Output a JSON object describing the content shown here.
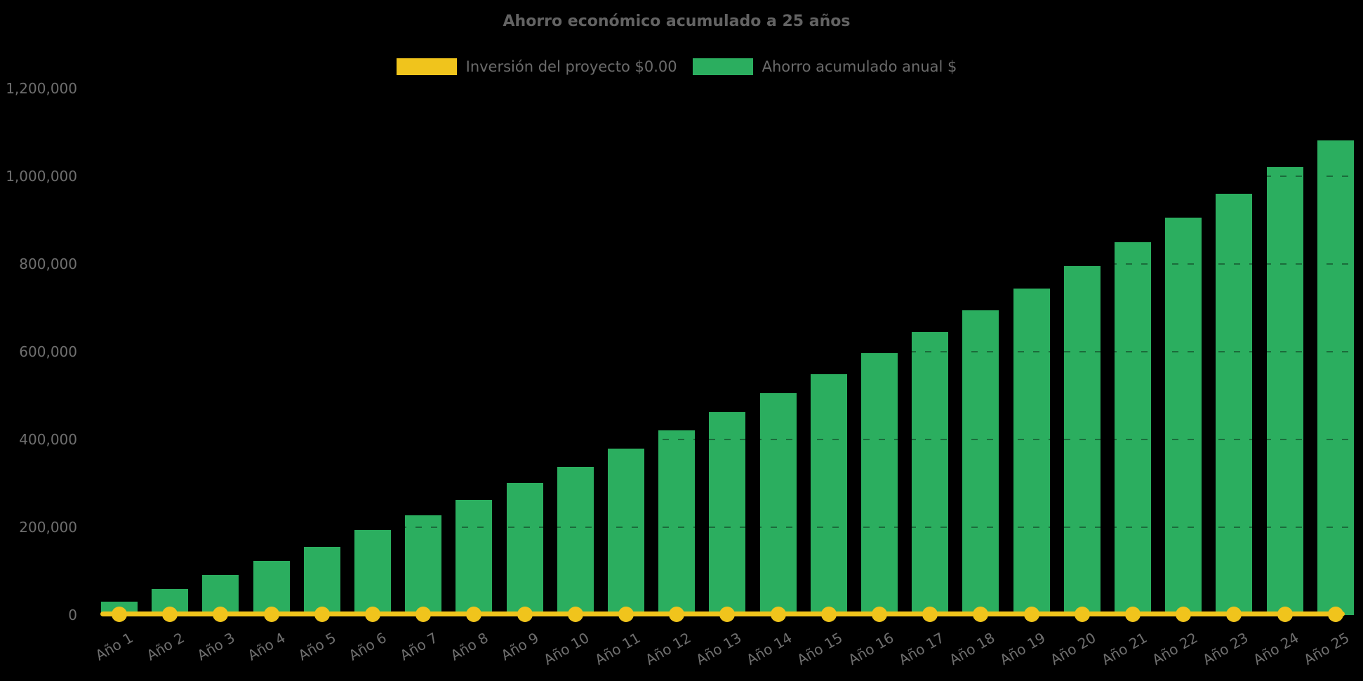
{
  "title": "Ahorro económico acumulado a 25 años",
  "legend": {
    "items": [
      {
        "label": "Inversión del proyecto $0.00",
        "color": "#f0c41c"
      },
      {
        "label": "Ahorro acumulado anual $",
        "color": "#2bae5f"
      }
    ]
  },
  "chart_data": {
    "type": "bar",
    "title": "Ahorro económico acumulado a 25 años",
    "categories": [
      "Año 1",
      "Año 2",
      "Año 3",
      "Año 4",
      "Año 5",
      "Año 6",
      "Año 7",
      "Año 8",
      "Año 9",
      "Año 10",
      "Año 11",
      "Año 12",
      "Año 13",
      "Año 14",
      "Año 15",
      "Año 16",
      "Año 17",
      "Año 18",
      "Año 19",
      "Año 20",
      "Año 21",
      "Año 22",
      "Año 23",
      "Año 24",
      "Año 25"
    ],
    "series": [
      {
        "name": "Inversión del proyecto $0.00",
        "type": "line",
        "marker": "circle",
        "color": "#f0c41c",
        "values": [
          0,
          0,
          0,
          0,
          0,
          0,
          0,
          0,
          0,
          0,
          0,
          0,
          0,
          0,
          0,
          0,
          0,
          0,
          0,
          0,
          0,
          0,
          0,
          0,
          0
        ]
      },
      {
        "name": "Ahorro acumulado anual $",
        "type": "bar",
        "color": "#2bae5f",
        "values": [
          30000,
          60000,
          92000,
          123000,
          156000,
          193000,
          227000,
          262000,
          301000,
          338000,
          379000,
          421000,
          462000,
          506000,
          549000,
          597000,
          645000,
          694000,
          744000,
          795000,
          850000,
          906000,
          960000,
          1021000,
          1082000
        ]
      }
    ],
    "xlabel": "",
    "ylabel": "",
    "ylim": [
      0,
      1200000
    ],
    "yticks": [
      0,
      200000,
      400000,
      600000,
      800000,
      1000000,
      1200000
    ],
    "ytick_format": "comma-thousands",
    "x_tick_rotation_deg": 30,
    "legend_position": "top-center",
    "grid": "subtle dashed horizontal, visible only over bars",
    "background": "#000000",
    "text_color": "#6b6b6b"
  }
}
